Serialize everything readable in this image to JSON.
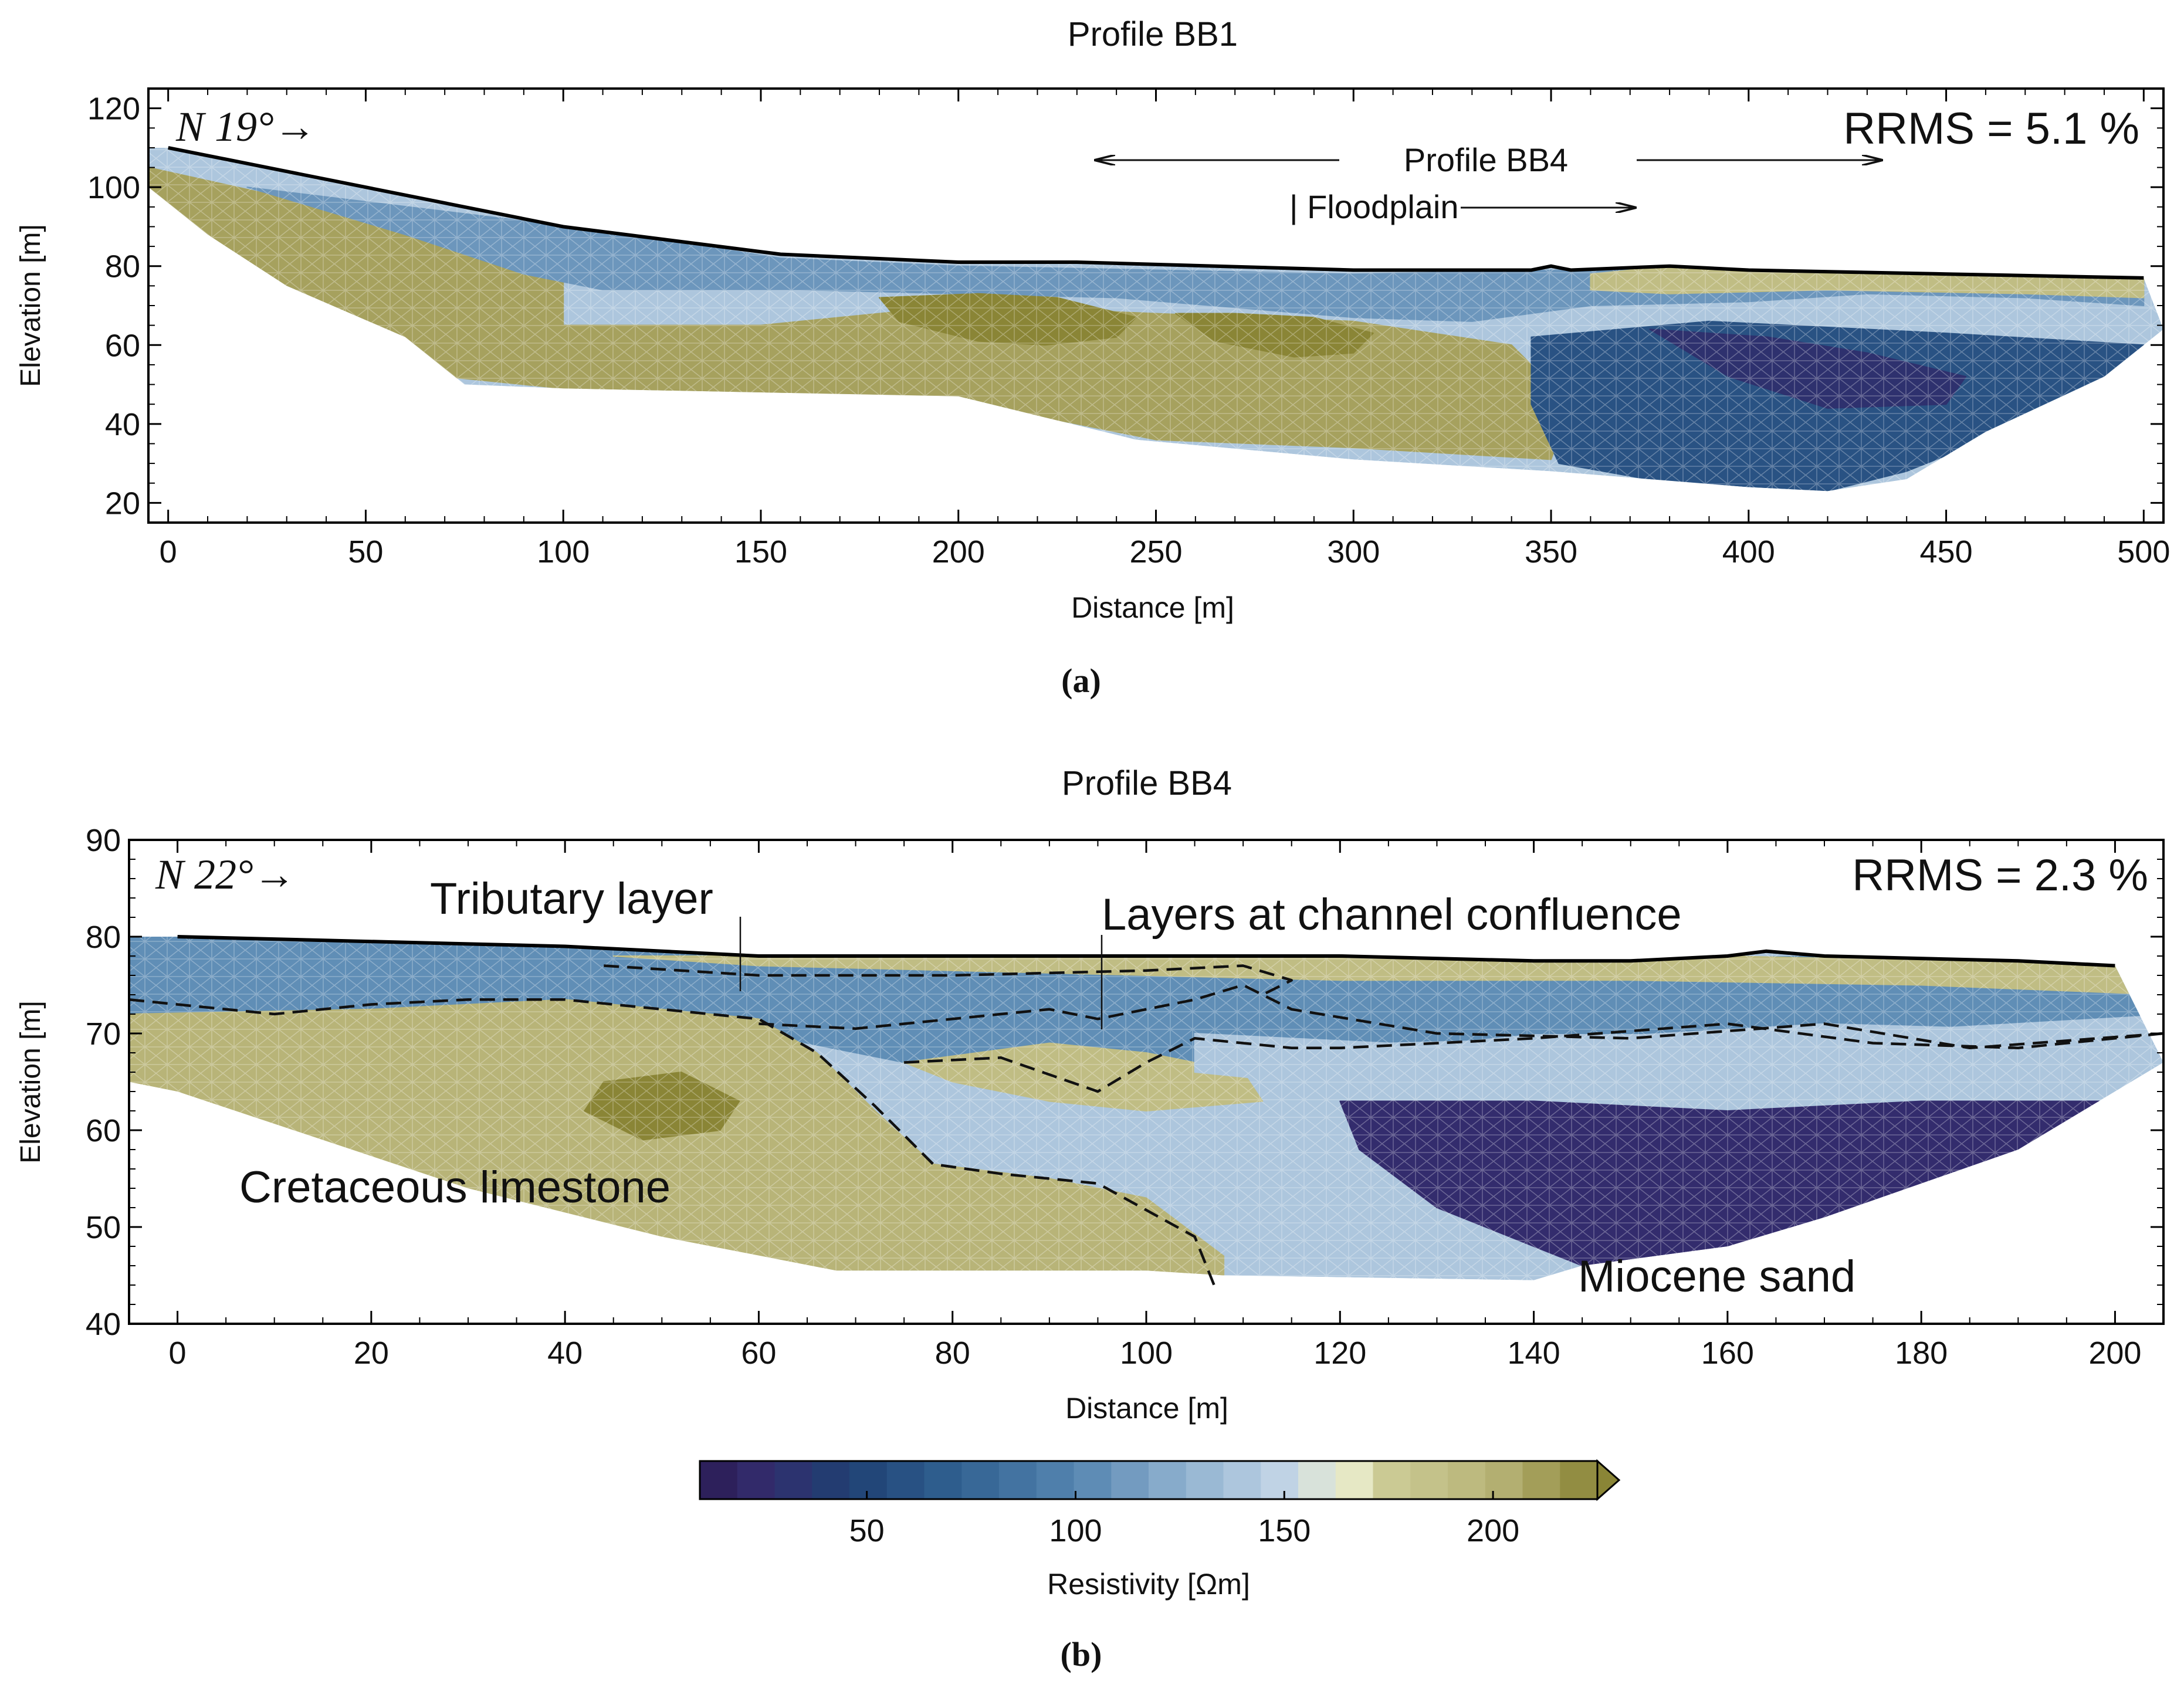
{
  "chart_data": [
    {
      "type": "heatmap",
      "title": "Profile BB1",
      "xlabel": "Distance [m]",
      "ylabel": "Elevation [m]",
      "xlim": [
        -5,
        505
      ],
      "ylim": [
        15,
        125
      ],
      "xticks": [
        0,
        50,
        100,
        150,
        200,
        250,
        300,
        350,
        400,
        450,
        500
      ],
      "yticks": [
        20,
        40,
        60,
        80,
        100,
        120
      ],
      "direction_label": "N 19°→",
      "rrms_label": "RRMS = 5.1 %",
      "annotations": {
        "profile_label": "Profile BB4",
        "floodplain_label": "| Floodplain"
      },
      "panel_label": "(a)",
      "surface": {
        "x": [
          -5,
          0,
          100,
          155,
          200,
          230,
          300,
          345,
          350,
          355,
          380,
          400,
          450,
          500
        ],
        "y": [
          110,
          110,
          90,
          83,
          81,
          81,
          79,
          79,
          80,
          79,
          80,
          79,
          78,
          77
        ]
      },
      "bottom": {
        "x": [
          -5,
          10,
          30,
          60,
          75,
          100,
          150,
          200,
          245,
          300,
          350,
          400,
          420,
          440,
          460,
          490,
          505
        ],
        "y": [
          100,
          88,
          75,
          62,
          50,
          49,
          48,
          47,
          36,
          31,
          28,
          24,
          23,
          26,
          38,
          52,
          64
        ]
      },
      "units": [
        {
          "x": [
            -5,
            40,
            100,
            100,
            150,
            200,
            250,
            300,
            340,
            355,
            350,
            300,
            250,
            200,
            150,
            100,
            70,
            40,
            15,
            -5
          ],
          "y": [
            105,
            95,
            80,
            65,
            65,
            70,
            68,
            66,
            60,
            45,
            31,
            34,
            36,
            46,
            48,
            49,
            52,
            60,
            80,
            95
          ],
          "resistivity": 210
        },
        {
          "x": [
            20,
            110,
            155,
            200,
            300,
            350,
            400,
            500,
            500,
            470,
            430,
            400,
            360,
            330,
            300,
            240,
            160,
            110,
            90,
            60
          ],
          "y": [
            100,
            89,
            82,
            80,
            78,
            79,
            79,
            76,
            70,
            72,
            73,
            71,
            70,
            66,
            67,
            72,
            74,
            74,
            78,
            88
          ],
          "resistivity": 110
        },
        {
          "x": [
            345,
            390,
            450,
            500,
            495,
            470,
            440,
            420,
            380,
            352,
            345
          ],
          "y": [
            62,
            66,
            63,
            60,
            50,
            40,
            28,
            23,
            25,
            30,
            45
          ],
          "resistivity": 60
        },
        {
          "x": [
            375,
            405,
            430,
            455,
            450,
            420,
            395
          ],
          "y": [
            64,
            62,
            58,
            52,
            45,
            44,
            52
          ],
          "resistivity": 30
        },
        {
          "x": [
            360,
            380,
            420,
            470,
            500,
            500,
            470,
            420,
            380,
            360
          ],
          "y": [
            78,
            80,
            79,
            79,
            77,
            72,
            73,
            74,
            73,
            74
          ],
          "resistivity": 190
        },
        {
          "x": [
            180,
            205,
            225,
            245,
            240,
            222,
            205,
            185
          ],
          "y": [
            72,
            73,
            72,
            67,
            62,
            60,
            61,
            66
          ],
          "resistivity": 235
        },
        {
          "x": [
            255,
            270,
            290,
            305,
            300,
            285,
            265
          ],
          "y": [
            68,
            68,
            67,
            63,
            58,
            57,
            61
          ],
          "resistivity": 228
        }
      ]
    },
    {
      "type": "heatmap",
      "title": "Profile BB4",
      "xlabel": "Distance [m]",
      "ylabel": "Elevation [m]",
      "xlim": [
        -5,
        205
      ],
      "ylim": [
        40,
        90
      ],
      "xticks": [
        0,
        20,
        40,
        60,
        80,
        100,
        120,
        140,
        160,
        180,
        200
      ],
      "yticks": [
        40,
        50,
        60,
        70,
        80,
        90
      ],
      "direction_label": "N 22°→",
      "rrms_label": "RRMS = 2.3 %",
      "annotations": {
        "tributary_label": "Tributary layer",
        "confluence_label": "Layers at channel confluence",
        "limestone_label": "Cretaceous limestone",
        "sand_label": "Miocene sand"
      },
      "panel_label": "(b)",
      "surface": {
        "x": [
          -5,
          0,
          40,
          60,
          100,
          120,
          140,
          150,
          160,
          164,
          170,
          190,
          200
        ],
        "y": [
          80,
          80,
          79,
          78,
          78,
          78,
          77.5,
          77.5,
          78,
          78.5,
          78,
          77.5,
          77
        ]
      },
      "bottom": {
        "x": [
          -5,
          0,
          30,
          50,
          68,
          75,
          100,
          108,
          140,
          145,
          160,
          170,
          190,
          200,
          205
        ],
        "y": [
          65,
          64,
          54,
          49,
          45.5,
          45.5,
          45.5,
          45,
          44.5,
          46,
          48,
          51,
          58,
          64,
          67
        ]
      },
      "units": [
        {
          "x": [
            -5,
            0,
            40,
            60,
            70,
            80,
            95,
            110,
            140,
            170,
            205,
            205,
            170,
            140,
            120,
            100,
            80,
            60,
            40,
            20,
            0,
            -5
          ],
          "y": [
            80,
            80,
            79,
            78,
            78,
            77.5,
            78,
            78,
            77.5,
            78,
            77,
            72,
            70,
            70,
            68,
            65,
            66,
            70,
            73,
            72,
            72,
            72
          ],
          "resistivity": 105
        },
        {
          "x": [
            -5,
            20,
            40,
            60,
            66,
            72,
            78,
            90,
            100,
            108,
            108,
            100,
            75,
            68,
            50,
            30,
            0,
            -5
          ],
          "y": [
            72,
            72.5,
            73.5,
            71.5,
            68,
            62,
            56.5,
            55,
            53,
            47,
            45,
            45.5,
            45.5,
            45.5,
            49,
            54,
            64,
            65
          ],
          "resistivity": 200
        },
        {
          "x": [
            75,
            90,
            100,
            110,
            112,
            100,
            90,
            80
          ],
          "y": [
            67,
            69,
            68,
            66,
            63,
            62,
            63,
            65
          ],
          "resistivity": 190
        },
        {
          "x": [
            45,
            125,
            160,
            205,
            205,
            180,
            150,
            120,
            60
          ],
          "y": [
            78,
            78,
            78,
            77,
            74,
            75,
            75.5,
            75.5,
            77
          ],
          "resistivity": 190
        },
        {
          "x": [
            120,
            140,
            160,
            180,
            200,
            200,
            190,
            175,
            160,
            145,
            130,
            122
          ],
          "y": [
            63,
            63,
            62,
            63,
            63,
            60,
            54,
            50,
            48,
            46,
            52,
            58
          ],
          "resistivity": 25
        },
        {
          "x": [
            105,
            125,
            145,
            170,
            205,
            205,
            195,
            175,
            155,
            135,
            115,
            105
          ],
          "y": [
            70,
            69,
            69.5,
            71,
            70,
            67,
            65,
            63,
            63,
            64,
            65,
            66
          ],
          "resistivity": 140
        },
        {
          "x": [
            44,
            52,
            58,
            56,
            48,
            42
          ],
          "y": [
            65,
            66,
            63,
            60,
            59,
            62
          ],
          "resistivity": 225
        }
      ],
      "interfaces": [
        {
          "x": [
            -5,
            5,
            10,
            20,
            30,
            40,
            50,
            60,
            66,
            72,
            78,
            85,
            95,
            105,
            107
          ],
          "y": [
            73.5,
            72.5,
            72,
            73,
            73.5,
            73.5,
            72.5,
            71.5,
            68,
            62.5,
            56.5,
            55.5,
            54.5,
            49,
            44
          ]
        },
        {
          "x": [
            60,
            70,
            80,
            85,
            90,
            95,
            105,
            110,
            115,
            130,
            150,
            170,
            185,
            205
          ],
          "y": [
            71,
            70.5,
            71.5,
            72,
            72.5,
            71.5,
            73.5,
            75,
            72.5,
            70,
            69.5,
            71,
            68.5,
            70
          ]
        },
        {
          "x": [
            75,
            85,
            95,
            100,
            105,
            110,
            115,
            120,
            140,
            160,
            175,
            190,
            205
          ],
          "y": [
            67,
            67.5,
            64,
            67,
            69.5,
            69,
            68.5,
            68.5,
            69.5,
            71,
            69,
            68.5,
            70
          ]
        },
        {
          "x": [
            44,
            60,
            80,
            100,
            110,
            115,
            112
          ],
          "y": [
            77,
            76,
            76,
            76.5,
            77,
            75.5,
            74
          ]
        }
      ]
    },
    {
      "type": "colorbar",
      "label": "Resistivity [Ωm]",
      "range": [
        10,
        225
      ],
      "ticks": [
        50,
        100,
        150,
        200
      ],
      "extend": "max",
      "colors": [
        {
          "v": 10,
          "c": "#2b1b53"
        },
        {
          "v": 25,
          "c": "#332c6d"
        },
        {
          "v": 45,
          "c": "#1f3f72"
        },
        {
          "v": 70,
          "c": "#2f5f8f"
        },
        {
          "v": 100,
          "c": "#5585b0"
        },
        {
          "v": 125,
          "c": "#8eb0cf"
        },
        {
          "v": 150,
          "c": "#c2d5e6"
        },
        {
          "v": 165,
          "c": "#eceecf"
        },
        {
          "v": 175,
          "c": "#cccb95"
        },
        {
          "v": 200,
          "c": "#b8b478"
        },
        {
          "v": 225,
          "c": "#8a8536"
        }
      ]
    }
  ]
}
